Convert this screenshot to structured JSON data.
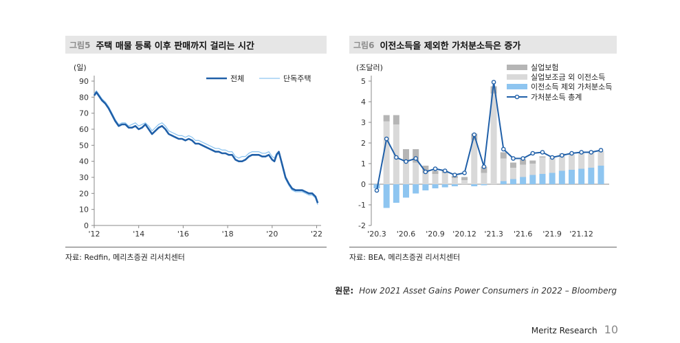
{
  "panel_left": {
    "fig_no": "그림5",
    "title": "주택 매물 등록 이후 판매까지 걸리는 시간",
    "source": "자료: Redfin, 메리츠증권 리서치센터"
  },
  "panel_right": {
    "fig_no": "그림6",
    "title": "이전소득을 제외한 가처분소득은 증가",
    "source": "자료: BEA, 메리츠증권 리서치센터"
  },
  "credit": {
    "label": "원문:",
    "text": "How 2021 Asset Gains Power Consumers in 2022 – Bloomberg"
  },
  "footer": {
    "brand": "Meritz Research",
    "page": "10"
  },
  "colors": {
    "dark_blue": "#1f5fa8",
    "light_blue": "#8ec5f0",
    "grey_dark": "#b5b5b5",
    "grey_light": "#d9d9d9"
  },
  "chart_data": [
    {
      "type": "line",
      "unit_label": "(일)",
      "xlim": [
        2012,
        2022.2
      ],
      "ylim": [
        0,
        90
      ],
      "yticks": [
        0,
        10,
        20,
        30,
        40,
        50,
        60,
        70,
        80,
        90
      ],
      "xticks": [
        {
          "v": 2012,
          "label": "'12"
        },
        {
          "v": 2014,
          "label": "'14"
        },
        {
          "v": 2016,
          "label": "'16"
        },
        {
          "v": 2018,
          "label": "'18"
        },
        {
          "v": 2020,
          "label": "'20"
        },
        {
          "v": 2022,
          "label": "'22"
        }
      ],
      "series": [
        {
          "name": "전체",
          "color": "#1f5fa8",
          "width": 2.6,
          "x": [
            2012.0,
            2012.1,
            2012.2,
            2012.35,
            2012.5,
            2012.65,
            2012.8,
            2012.95,
            2013.1,
            2013.25,
            2013.4,
            2013.55,
            2013.7,
            2013.85,
            2014.0,
            2014.15,
            2014.3,
            2014.45,
            2014.6,
            2014.75,
            2014.9,
            2015.05,
            2015.2,
            2015.35,
            2015.5,
            2015.65,
            2015.8,
            2015.95,
            2016.1,
            2016.25,
            2016.4,
            2016.55,
            2016.7,
            2016.85,
            2017.0,
            2017.15,
            2017.3,
            2017.45,
            2017.6,
            2017.75,
            2017.9,
            2018.05,
            2018.2,
            2018.35,
            2018.5,
            2018.65,
            2018.8,
            2018.95,
            2019.1,
            2019.25,
            2019.4,
            2019.55,
            2019.7,
            2019.85,
            2020.0,
            2020.1,
            2020.2,
            2020.3,
            2020.45,
            2020.6,
            2020.75,
            2020.9,
            2021.05,
            2021.2,
            2021.35,
            2021.5,
            2021.65,
            2021.8,
            2021.95,
            2022.05
          ],
          "y": [
            81,
            83,
            81,
            78,
            76,
            73,
            69,
            65,
            62,
            63,
            63,
            61,
            61,
            62,
            60,
            61,
            63,
            60,
            57,
            59,
            61,
            62,
            60,
            57,
            56,
            55,
            54,
            54,
            53,
            54,
            53,
            51,
            51,
            50,
            49,
            48,
            47,
            46,
            46,
            45,
            45,
            44,
            44,
            41,
            40,
            40,
            41,
            43,
            44,
            44,
            44,
            43,
            43,
            44,
            41,
            40,
            44,
            46,
            38,
            30,
            26,
            23,
            22,
            22,
            22,
            21,
            20,
            20,
            18,
            14
          ]
        },
        {
          "name": "단독주택",
          "color": "#8ec5f0",
          "width": 1.3,
          "x": [
            2012.0,
            2012.1,
            2012.2,
            2012.35,
            2012.5,
            2012.65,
            2012.8,
            2012.95,
            2013.1,
            2013.25,
            2013.4,
            2013.55,
            2013.7,
            2013.85,
            2014.0,
            2014.15,
            2014.3,
            2014.45,
            2014.6,
            2014.75,
            2014.9,
            2015.05,
            2015.2,
            2015.35,
            2015.5,
            2015.65,
            2015.8,
            2015.95,
            2016.1,
            2016.25,
            2016.4,
            2016.55,
            2016.7,
            2016.85,
            2017.0,
            2017.15,
            2017.3,
            2017.45,
            2017.6,
            2017.75,
            2017.9,
            2018.05,
            2018.2,
            2018.35,
            2018.5,
            2018.65,
            2018.8,
            2018.95,
            2019.1,
            2019.25,
            2019.4,
            2019.55,
            2019.7,
            2019.85,
            2020.0,
            2020.1,
            2020.2,
            2020.3,
            2020.45,
            2020.6,
            2020.75,
            2020.9,
            2021.05,
            2021.2,
            2021.35,
            2021.5,
            2021.65,
            2021.8,
            2021.95,
            2022.05
          ],
          "y": [
            82,
            84,
            82,
            79,
            77,
            74,
            70,
            66,
            63,
            64,
            64,
            62,
            63,
            64,
            62,
            63,
            64,
            62,
            59,
            61,
            63,
            64,
            62,
            59,
            58,
            57,
            56,
            56,
            55,
            56,
            55,
            53,
            53,
            52,
            51,
            50,
            49,
            48,
            48,
            47,
            47,
            46,
            46,
            43,
            42,
            43,
            43,
            45,
            46,
            46,
            46,
            45,
            45,
            46,
            43,
            42,
            45,
            46,
            37,
            29,
            25,
            22,
            21,
            21,
            21,
            20,
            19,
            19,
            17,
            13
          ]
        }
      ]
    },
    {
      "type": "bar+line",
      "unit_label": "(조달러)",
      "ylim": [
        -2,
        5
      ],
      "yticks": [
        -2,
        -1,
        0,
        1,
        2,
        3,
        4,
        5
      ],
      "categories": [
        "'20.3",
        "'20.4",
        "'20.5",
        "'20.6",
        "'20.7",
        "'20.8",
        "'20.9",
        "'20.10",
        "'20.11",
        "'20.12",
        "'21.1",
        "'21.2",
        "'21.3",
        "'21.4",
        "'21.5",
        "'21.6",
        "'21.7",
        "'21.8",
        "'21.9",
        "'21.10",
        "'21.11",
        "'21.12",
        "'22.1",
        "'22.2"
      ],
      "xtick_labels": [
        {
          "i": 0,
          "label": "'20.3"
        },
        {
          "i": 3,
          "label": "'20.6"
        },
        {
          "i": 6,
          "label": "'20.9"
        },
        {
          "i": 9,
          "label": "'20.12"
        },
        {
          "i": 12,
          "label": "'21.3"
        },
        {
          "i": 15,
          "label": "'21.6"
        },
        {
          "i": 18,
          "label": "'21.9"
        },
        {
          "i": 21,
          "label": "'21.12"
        }
      ],
      "series": [
        {
          "name": "실업보험",
          "kind": "bar",
          "color": "#b5b5b5",
          "values": [
            0,
            0.3,
            0.45,
            0.6,
            0.65,
            0.35,
            0.15,
            0.1,
            0.1,
            0.15,
            0.3,
            0.3,
            0.35,
            0.3,
            0.25,
            0.25,
            0.15,
            0.05,
            0,
            0,
            0,
            0,
            0,
            0
          ]
        },
        {
          "name": "실업보조금 외 이전소득",
          "kind": "bar",
          "color": "#d9d9d9",
          "values": [
            0,
            3.05,
            2.9,
            1.1,
            1.05,
            0.55,
            0.5,
            0.55,
            0.3,
            0.2,
            2.15,
            0.55,
            4.4,
            1.1,
            0.55,
            0.6,
            0.55,
            0.8,
            0.75,
            0.85,
            0.75,
            0.8,
            0.8,
            0.7
          ]
        },
        {
          "name": "이전소득 제외 가처분소득",
          "kind": "bar",
          "color": "#8ec5f0",
          "values": [
            -0.2,
            -1.15,
            -0.9,
            -0.65,
            -0.45,
            -0.3,
            -0.2,
            -0.15,
            -0.1,
            0,
            -0.1,
            -0.05,
            0,
            0.15,
            0.25,
            0.35,
            0.45,
            0.5,
            0.55,
            0.65,
            0.7,
            0.75,
            0.8,
            0.9
          ]
        },
        {
          "name": "가처분소득 총계",
          "kind": "line",
          "color": "#1f5fa8",
          "values": [
            -0.3,
            2.2,
            1.3,
            1.1,
            1.25,
            0.6,
            0.75,
            0.65,
            0.45,
            0.55,
            2.4,
            0.85,
            4.95,
            1.7,
            1.25,
            1.25,
            1.5,
            1.55,
            1.3,
            1.4,
            1.5,
            1.55,
            1.55,
            1.65
          ]
        }
      ]
    }
  ]
}
